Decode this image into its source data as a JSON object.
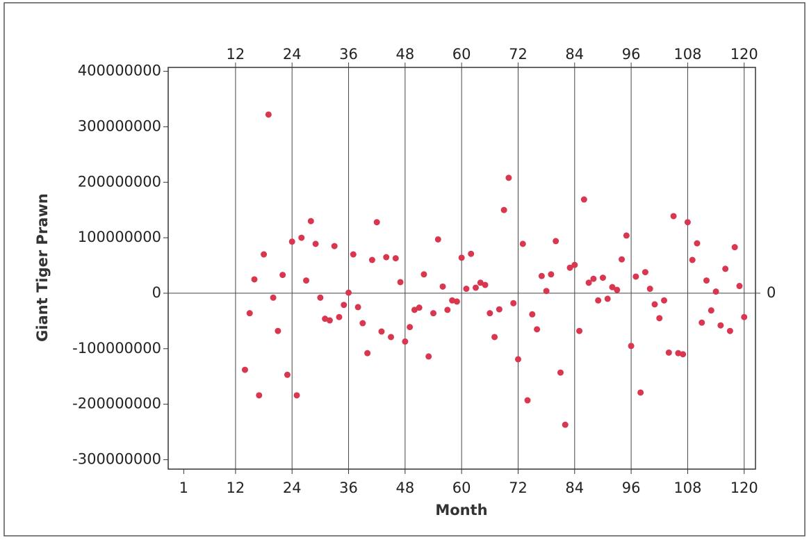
{
  "chart_data": {
    "type": "line",
    "x_label": "Month",
    "y_label": "Giant Tiger Prawn",
    "x": [
      14,
      15,
      16,
      17,
      18,
      19,
      20,
      21,
      22,
      23,
      24,
      25,
      26,
      27,
      28,
      29,
      30,
      31,
      32,
      33,
      34,
      35,
      36,
      37,
      38,
      39,
      40,
      41,
      42,
      43,
      44,
      45,
      46,
      47,
      48,
      49,
      50,
      51,
      52,
      53,
      54,
      55,
      56,
      57,
      58,
      59,
      60,
      61,
      62,
      63,
      64,
      65,
      66,
      67,
      68,
      69,
      70,
      71,
      72,
      73,
      74,
      75,
      76,
      77,
      78,
      79,
      80,
      81,
      82,
      83,
      84,
      85,
      86,
      87,
      88,
      89,
      90,
      91,
      92,
      93,
      94,
      95,
      96,
      97,
      98,
      99,
      100,
      101,
      102,
      103,
      104,
      105,
      106,
      107,
      108,
      109,
      110,
      111,
      112,
      113,
      114,
      115,
      116,
      117,
      118,
      119,
      120
    ],
    "series": [
      {
        "name": "Giant Tiger Prawn",
        "color": "#2a5caa",
        "marker_color": "#d9364f",
        "values": [
          -138000000,
          -36000000,
          25000000,
          -184000000,
          70000000,
          322000000,
          -8000000,
          -68000000,
          33000000,
          -147000000,
          93000000,
          -184000000,
          100000000,
          23000000,
          130000000,
          89000000,
          -8000000,
          -46000000,
          -49000000,
          85000000,
          -43000000,
          -21000000,
          1000000,
          70000000,
          -25000000,
          -54000000,
          -108000000,
          60000000,
          128000000,
          -69000000,
          65000000,
          -79000000,
          63000000,
          20000000,
          -87000000,
          -61000000,
          -30000000,
          -26000000,
          34000000,
          -114000000,
          -36000000,
          97000000,
          12000000,
          -30000000,
          -13000000,
          -15000000,
          64000000,
          8000000,
          71000000,
          10000000,
          19000000,
          15000000,
          -36000000,
          -79000000,
          -29000000,
          150000000,
          208000000,
          -18000000,
          -119000000,
          89000000,
          -193000000,
          -38000000,
          -65000000,
          31000000,
          4000000,
          34000000,
          94000000,
          -143000000,
          -237000000,
          46000000,
          51000000,
          -68000000,
          169000000,
          19000000,
          26000000,
          -13000000,
          28000000,
          -10000000,
          11000000,
          6000000,
          61000000,
          104000000,
          -95000000,
          30000000,
          -179000000,
          38000000,
          8000000,
          -20000000,
          -45000000,
          -13000000,
          -107000000,
          139000000,
          -108000000,
          -110000000,
          128000000,
          60000000,
          90000000,
          -53000000,
          23000000,
          -31000000,
          3000000,
          -58000000,
          44000000,
          -68000000,
          83000000,
          13000000,
          -43000000
        ]
      }
    ],
    "xlim": [
      -2.3,
      122.4
    ],
    "xticks": [
      1,
      12,
      24,
      36,
      48,
      60,
      72,
      84,
      96,
      108,
      120
    ],
    "top_xticks": [
      12,
      24,
      36,
      48,
      60,
      72,
      84,
      96,
      108,
      120
    ],
    "ylim": [
      -317000000,
      407000000
    ],
    "yticks": [
      -300000000,
      -200000000,
      -100000000,
      0,
      100000000,
      200000000,
      300000000,
      400000000
    ],
    "right_yticks": [
      0
    ]
  }
}
